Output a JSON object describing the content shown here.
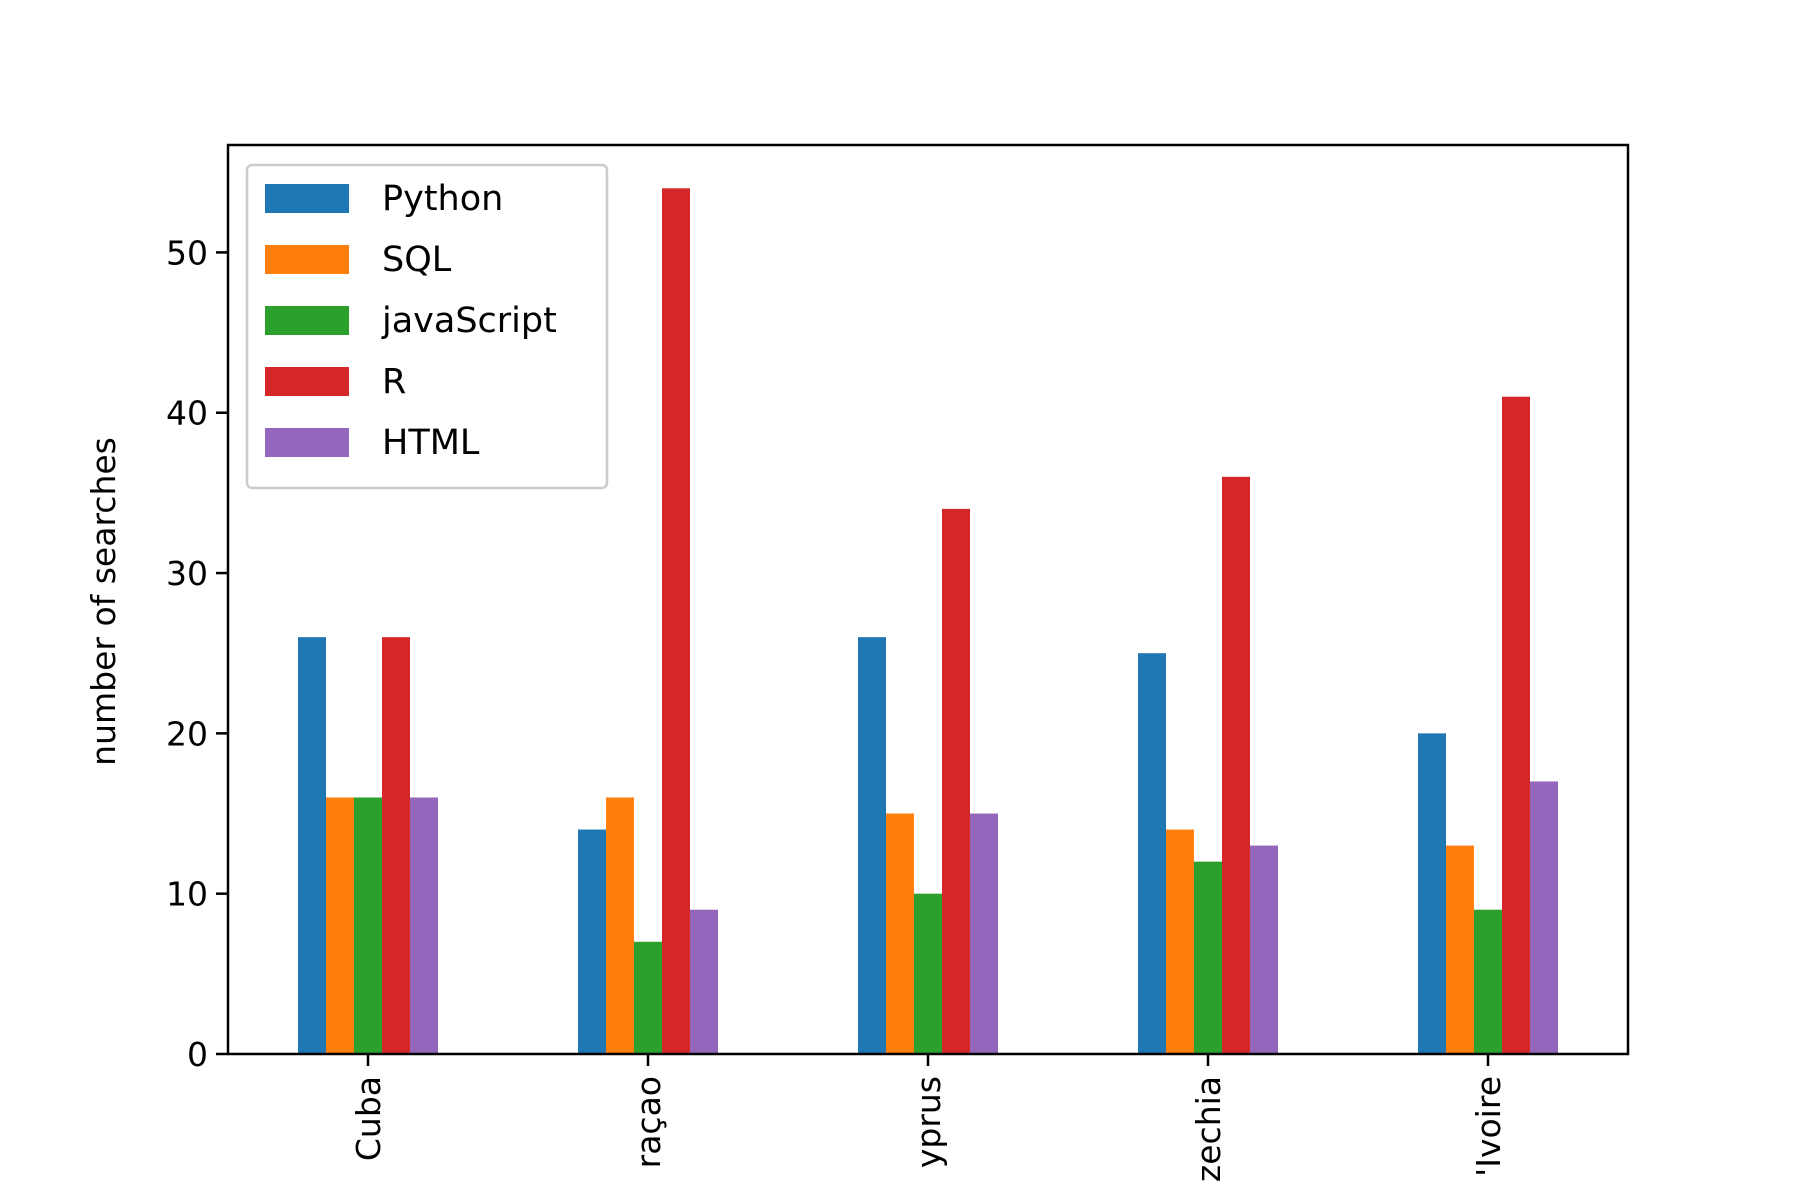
{
  "chart_data": {
    "type": "bar",
    "categories": [
      "Cuba",
      "raçao",
      "yprus",
      "zechia",
      "'Ivoire"
    ],
    "series": [
      {
        "name": "Python",
        "color": "#1f77b4",
        "values": [
          26,
          14,
          26,
          25,
          20
        ]
      },
      {
        "name": "SQL",
        "color": "#ff7f0e",
        "values": [
          16,
          16,
          15,
          14,
          13
        ]
      },
      {
        "name": "javaScript",
        "color": "#2ca02c",
        "values": [
          16,
          7,
          10,
          12,
          9
        ]
      },
      {
        "name": "R",
        "color": "#d62728",
        "values": [
          26,
          54,
          34,
          36,
          41
        ]
      },
      {
        "name": "HTML",
        "color": "#9467bd",
        "values": [
          16,
          9,
          15,
          13,
          17
        ]
      }
    ],
    "title": "",
    "xlabel": "",
    "ylabel": "number of searches",
    "ylim": [
      0,
      56.7
    ],
    "yticks": [
      0,
      10,
      20,
      30,
      40,
      50
    ],
    "grid": false,
    "legend_position": "top-left"
  }
}
